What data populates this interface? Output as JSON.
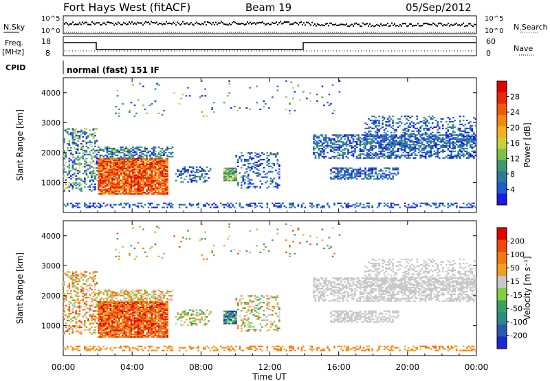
{
  "header": {
    "title": "Fort Hays West (fitACF)",
    "beam": "Beam 19",
    "date": "05/Sep/2012"
  },
  "panels": {
    "nsky": {
      "left_label": "N.Sky",
      "right_label": "N.Search",
      "left_ticks": [
        "10^5",
        "10^0"
      ],
      "right_ticks": [
        "10^5",
        "10^0"
      ]
    },
    "freq": {
      "left_label": "Freq.",
      "left_unit": "[MHz]",
      "right_label": "Nave",
      "left_ticks": [
        "18",
        "8"
      ],
      "right_ticks": [
        "60",
        "0"
      ]
    },
    "cpid": {
      "label": "CPID",
      "value": "normal (fast) 151 IF"
    }
  },
  "chart_data": [
    {
      "type": "heatmap",
      "name": "power",
      "ylabel": "Slant Range [km]",
      "xlabel": "",
      "yticks": [
        "1000",
        "2000",
        "3000",
        "4000"
      ],
      "ylim": [
        0,
        4500
      ],
      "xlim_hours": [
        0,
        24
      ],
      "colorbar": {
        "label": "Power [dB]",
        "ticks": [
          "28",
          "24",
          "20",
          "16",
          "12",
          "8",
          "4"
        ],
        "colors": [
          "#1a1ae6",
          "#1e5ad2",
          "#2e7a9c",
          "#3e9a6e",
          "#7cc24a",
          "#c8d23a",
          "#f0b020",
          "#f08a10",
          "#f05a08",
          "#e82808",
          "#e00000"
        ]
      }
    },
    {
      "type": "heatmap",
      "name": "velocity",
      "ylabel": "Slant Range [km]",
      "xlabel": "Time UT",
      "yticks": [
        "1000",
        "2000",
        "3000",
        "4000"
      ],
      "ylim": [
        0,
        4500
      ],
      "xlim_hours": [
        0,
        24
      ],
      "xticks": [
        "00:00",
        "04:00",
        "08:00",
        "12:00",
        "16:00",
        "20:00",
        "00:00"
      ],
      "colorbar": {
        "label": "Velocity [m s⁻¹]",
        "ticks": [
          "200",
          "100",
          "50",
          "15",
          "-15",
          "-50",
          "-100",
          "-200"
        ],
        "colors": [
          "#1a2ad0",
          "#2a5ab0",
          "#2e8a8a",
          "#3aa060",
          "#80d040",
          "#c8c8c8",
          "#f0a020",
          "#f07810",
          "#f04808",
          "#e00000"
        ]
      }
    }
  ]
}
